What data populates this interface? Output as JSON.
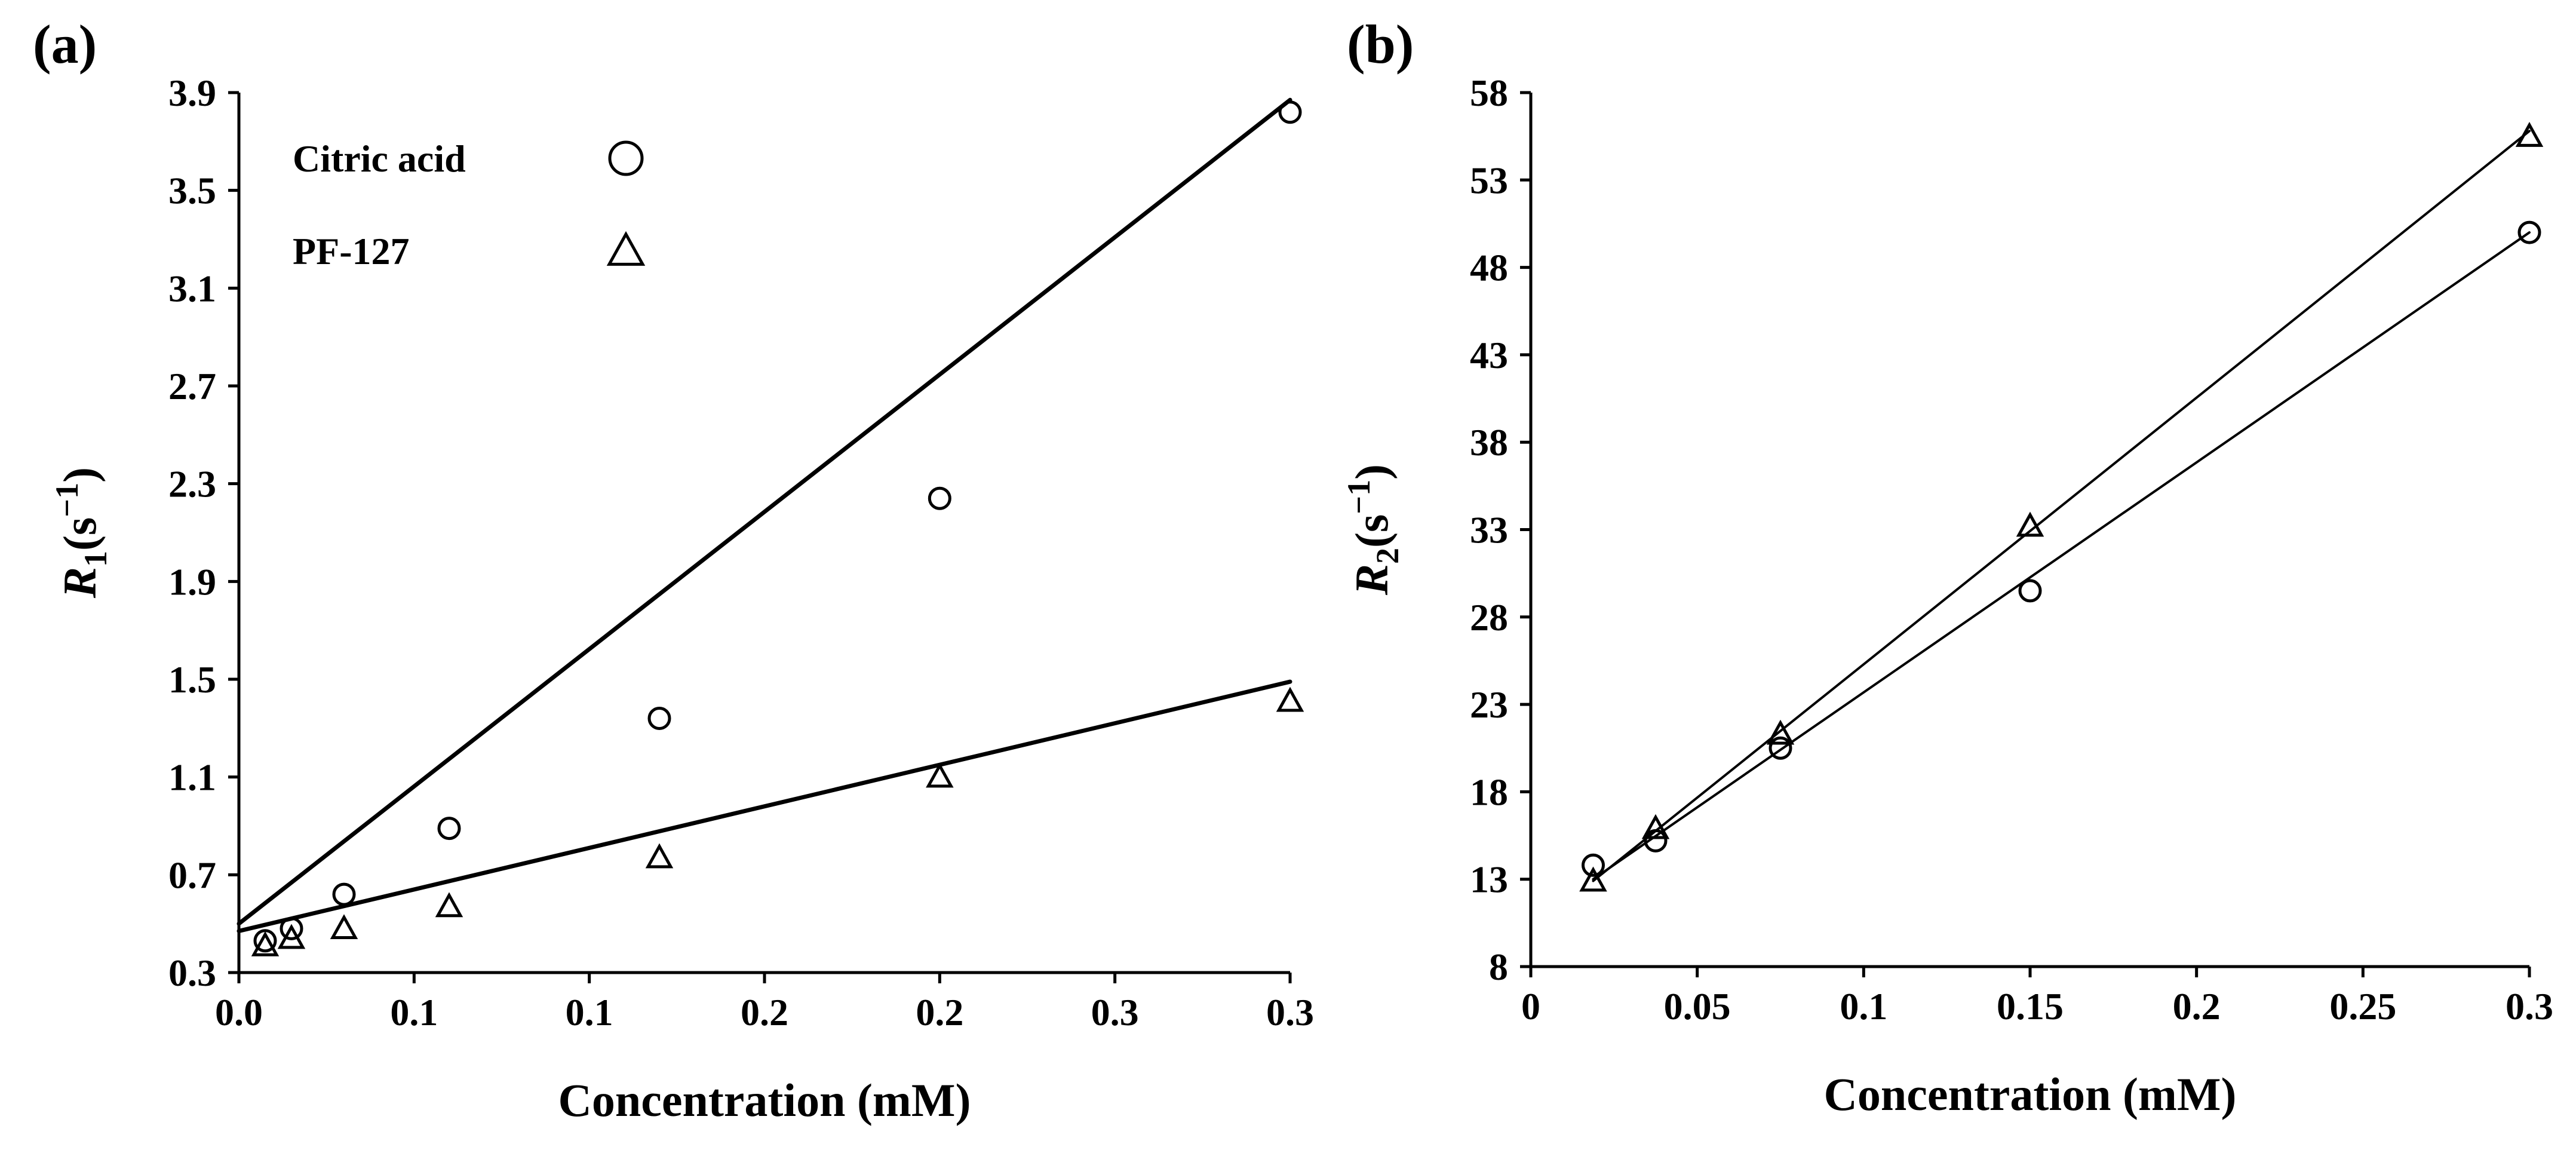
{
  "figure": {
    "panels": [
      {
        "id": "a",
        "label": "(a)"
      },
      {
        "id": "b",
        "label": "(b)"
      }
    ]
  },
  "chart_data": [
    {
      "type": "scatter",
      "panel": "(a)",
      "title": "",
      "xlabel": "Concentration (mM)",
      "ylabel": "R1(s−1)",
      "ylabel_main": "R",
      "ylabel_sub": "1",
      "ylabel_open": "(s",
      "ylabel_sup": "−1",
      "ylabel_close": ")",
      "xlim": [
        0,
        0.3
      ],
      "ylim": [
        0.3,
        3.9
      ],
      "x_ticks": [
        0,
        0.05,
        0.1,
        0.15,
        0.2,
        0.25,
        0.3
      ],
      "x_tick_labels": [
        "0.0",
        "0.1",
        "0.1",
        "0.2",
        "0.2",
        "0.3",
        "0.3"
      ],
      "y_ticks": [
        0.3,
        0.7,
        1.1,
        1.5,
        1.9,
        2.3,
        2.7,
        3.1,
        3.5,
        3.9
      ],
      "y_tick_labels": [
        "0.3",
        "0.7",
        "1.1",
        "1.5",
        "1.9",
        "2.3",
        "2.7",
        "3.1",
        "3.5",
        "3.9"
      ],
      "grid": false,
      "legend_position": "top-left",
      "series": [
        {
          "name": "Citric acid",
          "marker": "circle",
          "x": [
            0.0075,
            0.015,
            0.03,
            0.06,
            0.12,
            0.2,
            0.3
          ],
          "y": [
            0.43,
            0.48,
            0.62,
            0.89,
            1.34,
            2.24,
            3.82
          ],
          "fit": {
            "x": [
              0,
              0.3
            ],
            "y": [
              0.5,
              3.87
            ]
          }
        },
        {
          "name": "PF-127",
          "marker": "triangle",
          "x": [
            0.0075,
            0.015,
            0.03,
            0.06,
            0.12,
            0.2,
            0.3
          ],
          "y": [
            0.41,
            0.44,
            0.48,
            0.57,
            0.77,
            1.1,
            1.41
          ],
          "fit": {
            "x": [
              0,
              0.3
            ],
            "y": [
              0.47,
              1.49
            ]
          }
        }
      ]
    },
    {
      "type": "scatter",
      "panel": "(b)",
      "title": "",
      "xlabel": "Concentration (mM)",
      "ylabel": "R2(s−1)",
      "ylabel_main": "R",
      "ylabel_sub": "2",
      "ylabel_open": "(s",
      "ylabel_sup": "−1",
      "ylabel_close": ")",
      "xlim": [
        0,
        0.3
      ],
      "ylim": [
        8,
        58
      ],
      "x_ticks": [
        0,
        0.05,
        0.1,
        0.15,
        0.2,
        0.25,
        0.3
      ],
      "x_tick_labels": [
        "0",
        "0.05",
        "0.1",
        "0.15",
        "0.2",
        "0.25",
        "0.3"
      ],
      "y_ticks": [
        8,
        13,
        18,
        23,
        28,
        33,
        38,
        43,
        48,
        53,
        58
      ],
      "y_tick_labels": [
        "8",
        "13",
        "18",
        "23",
        "28",
        "33",
        "38",
        "43",
        "48",
        "53",
        "58"
      ],
      "grid": false,
      "legend_position": "none",
      "series": [
        {
          "name": "Citric acid",
          "marker": "circle",
          "x": [
            0.01875,
            0.0375,
            0.075,
            0.15,
            0.3
          ],
          "y": [
            13.8,
            15.2,
            20.5,
            29.5,
            50
          ],
          "fit": {
            "x": [
              0.01875,
              0.3
            ],
            "y": [
              13.0,
              50
            ]
          }
        },
        {
          "name": "PF-127",
          "marker": "triangle",
          "x": [
            0.01875,
            0.0375,
            0.075,
            0.15,
            0.3
          ],
          "y": [
            12.9,
            15.9,
            21.3,
            33.2,
            55.5
          ],
          "fit": {
            "x": [
              0.01875,
              0.3
            ],
            "y": [
              12.9,
              55.8
            ]
          }
        }
      ]
    }
  ]
}
